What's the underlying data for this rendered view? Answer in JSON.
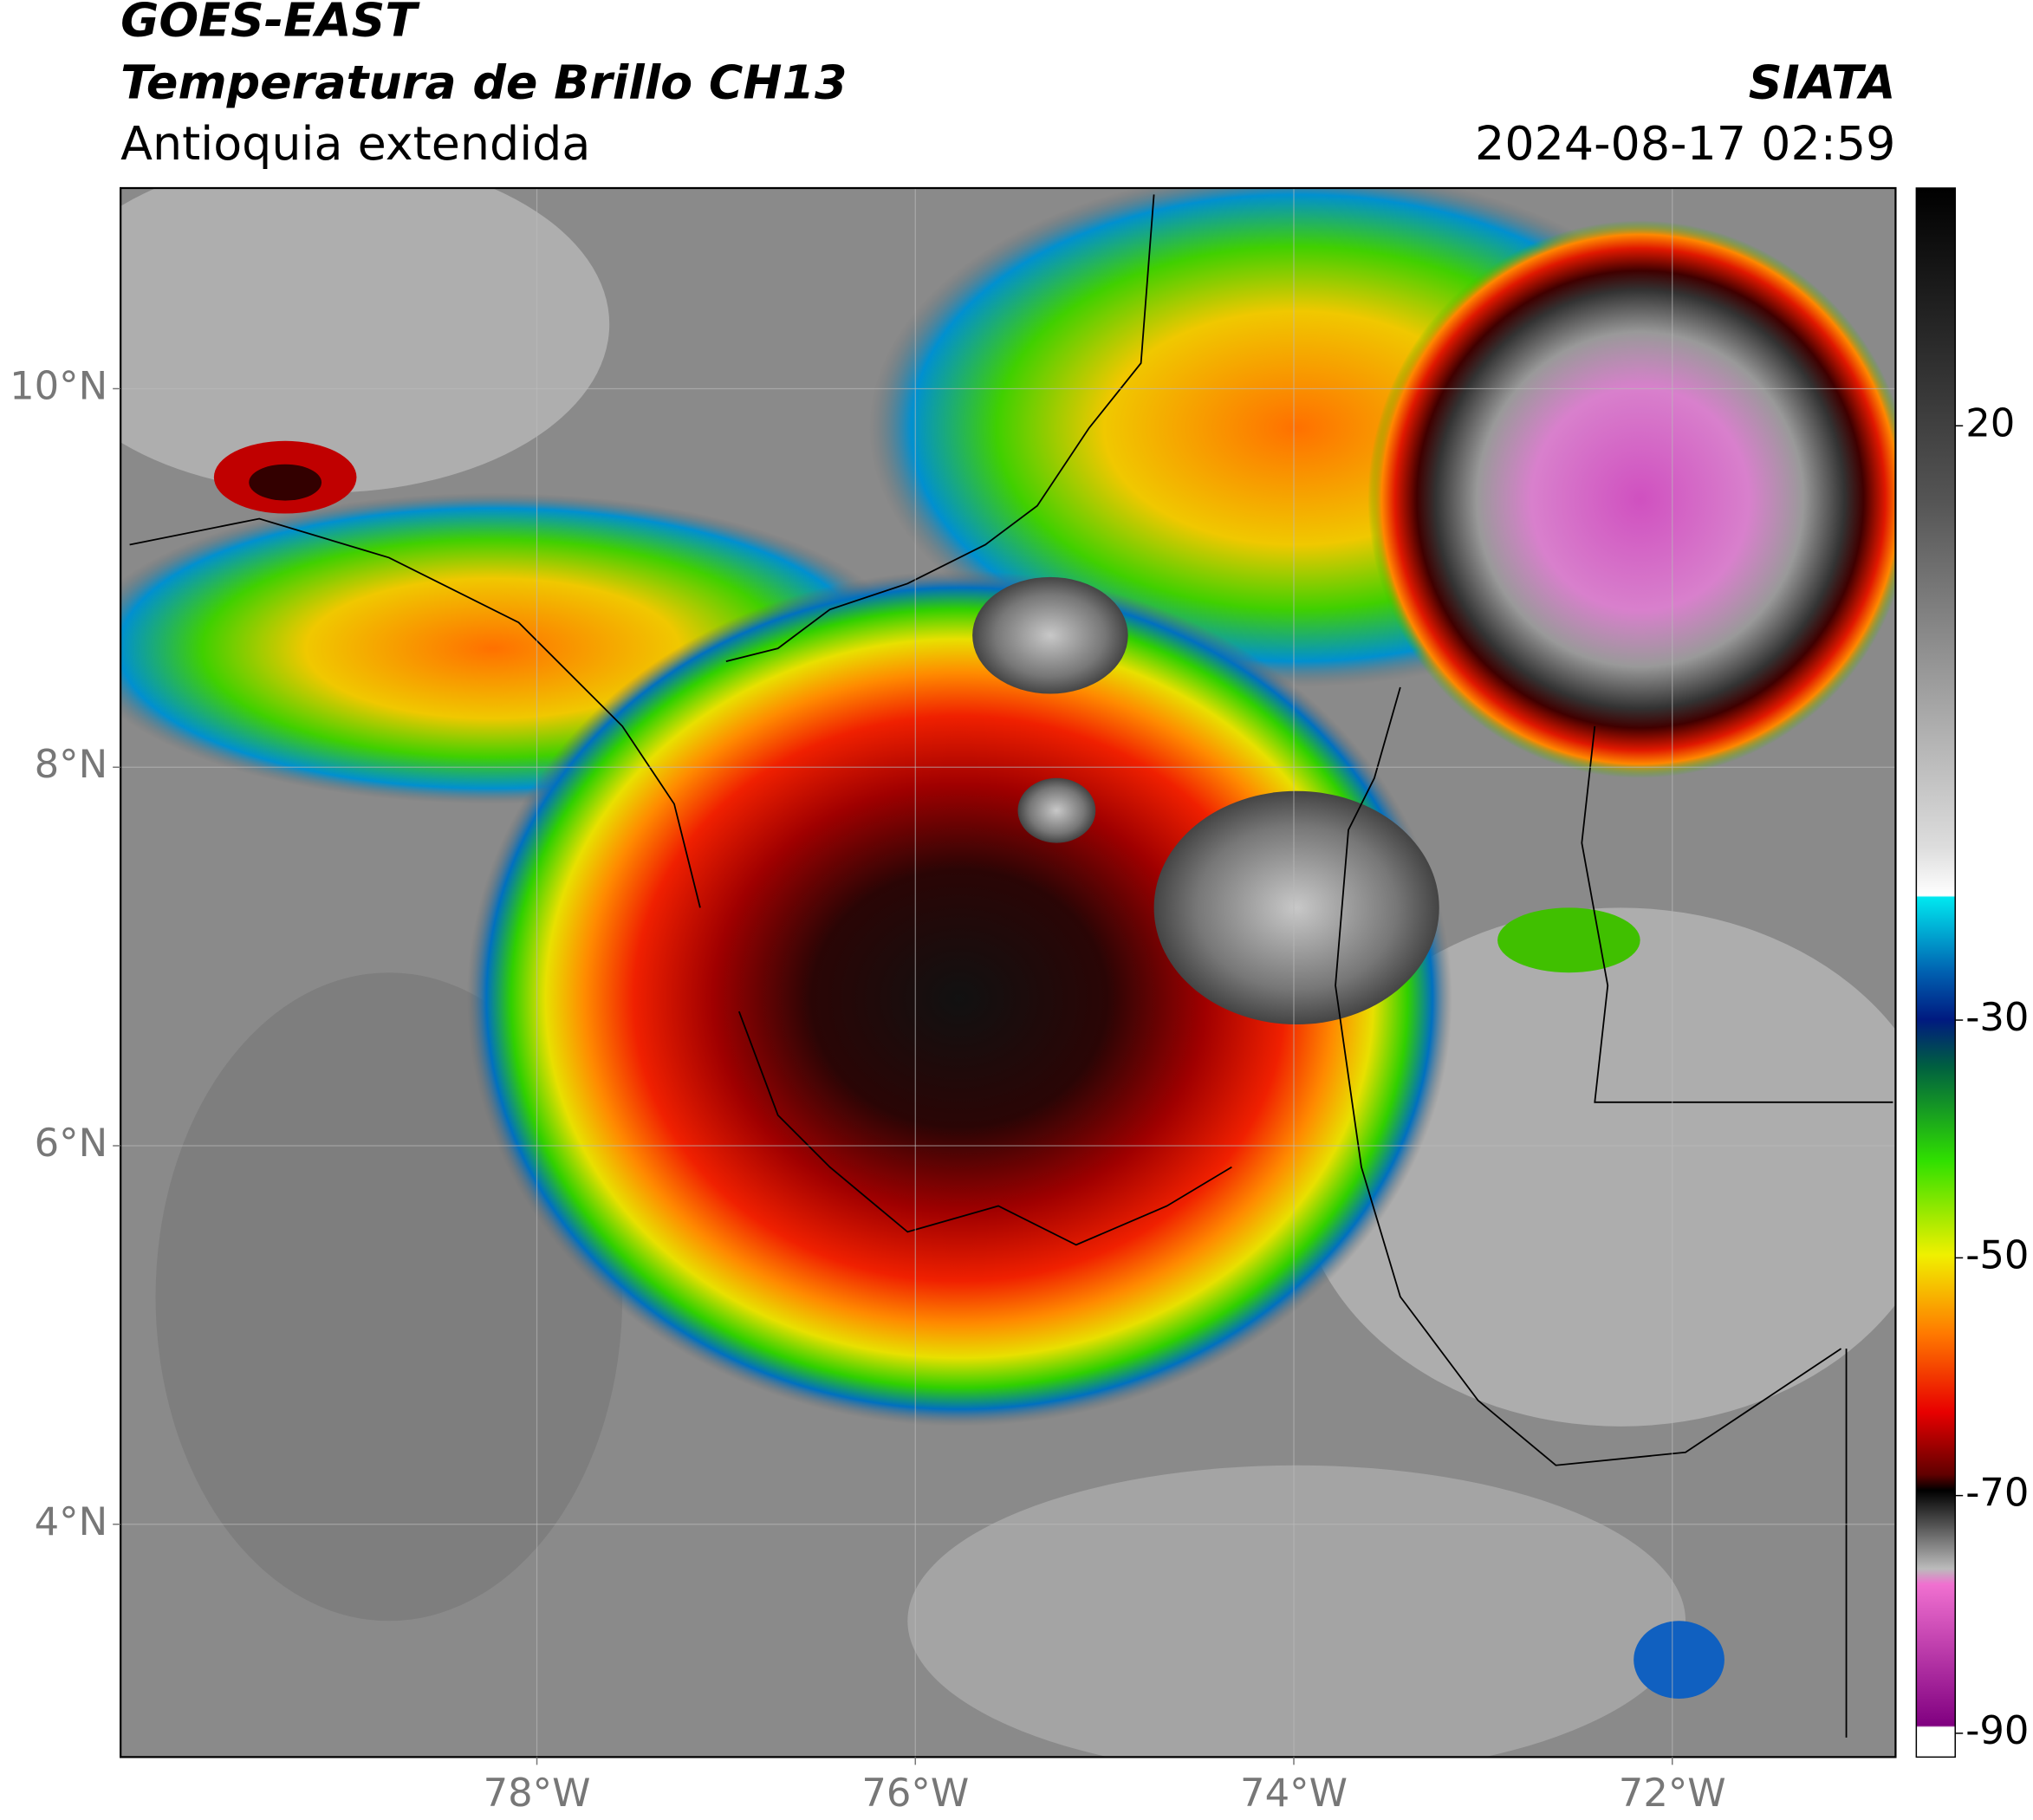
{
  "header": {
    "satellite": "GOES-EAST",
    "product": "Temperatura de Brillo CH13",
    "region": "Antioquia extendida",
    "source": "SIATA",
    "datetime": "2024-08-17 02:59"
  },
  "map": {
    "xlim": [
      -80.2,
      -70.82
    ],
    "ylim": [
      2.77,
      11.06
    ],
    "xticks": [
      {
        "value": -78,
        "label": "78°W"
      },
      {
        "value": -76,
        "label": "76°W"
      },
      {
        "value": -74,
        "label": "74°W"
      },
      {
        "value": -72,
        "label": "72°W"
      }
    ],
    "yticks": [
      {
        "value": 10,
        "label": "10°N"
      },
      {
        "value": 8,
        "label": "8°N"
      },
      {
        "value": 6,
        "label": "6°N"
      },
      {
        "value": 4,
        "label": "4°N"
      }
    ],
    "grid": true
  },
  "colorbar": {
    "lim": [
      -92,
      40
    ],
    "ticks": [
      20,
      -30,
      -50,
      -70,
      -90
    ]
  }
}
